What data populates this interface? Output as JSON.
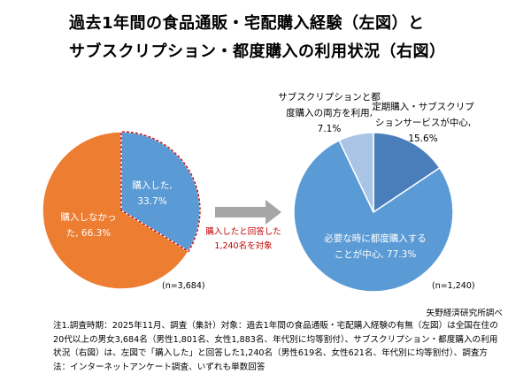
{
  "title": {
    "line1": "過去1年間の食品通販・宅配購入経験（左図）と",
    "line2": "サブスクリプション・都度購入の利用状況（右図）"
  },
  "chart_data": [
    {
      "type": "pie",
      "title": "",
      "n_label": "(n=3,684)",
      "slices": [
        {
          "label": "購入した",
          "value": 33.7,
          "color": "#5B9BD5",
          "text": [
            "購入した,",
            "33.7%"
          ]
        },
        {
          "label": "購入しなかった",
          "value": 66.3,
          "color": "#ED7D31",
          "text": [
            "購入しなかっ",
            "た, 66.3%"
          ]
        }
      ]
    },
    {
      "type": "pie",
      "title": "",
      "n_label": "(n=1,240)",
      "slices": [
        {
          "label": "定期購入・サブスクリプションサービスが中心",
          "value": 15.6,
          "color": "#4A7EBB",
          "text": [
            "定期購入・サブスクリプ",
            "ションサービスが中心,",
            "15.6%"
          ]
        },
        {
          "label": "必要な時に都度購入することが中心",
          "value": 77.3,
          "color": "#5B9BD5",
          "text": [
            "必要な時に都度購入する",
            "ことが中心, 77.3%"
          ]
        },
        {
          "label": "サブスクリプションと都度購入の両方を利用",
          "value": 7.1,
          "color": "#A9C4E4",
          "text": [
            "サブスクリプションと都",
            "度購入の両方を利用,",
            "7.1%"
          ]
        }
      ]
    }
  ],
  "arrow": {
    "line1": "購入したと回答した",
    "line2": "1,240名を対象",
    "color": "#C00000"
  },
  "source": "矢野経済研究所調べ",
  "note": "注1.調査時期：2025年11月、調査（集計）対象：過去1年間の食品通販・宅配購入経験の有無（左図）は全国在住の20代以上の男女3,684名（男性1,801名、女性1,883名、年代別に均等割付）、サブスクリプション・都度購入の利用状況（右図）は、左図で「購入した」と回答した1,240名（男性619名、女性621名、年代別に均等割付）、調査方法：インターネットアンケート調査、いずれも単数回答"
}
